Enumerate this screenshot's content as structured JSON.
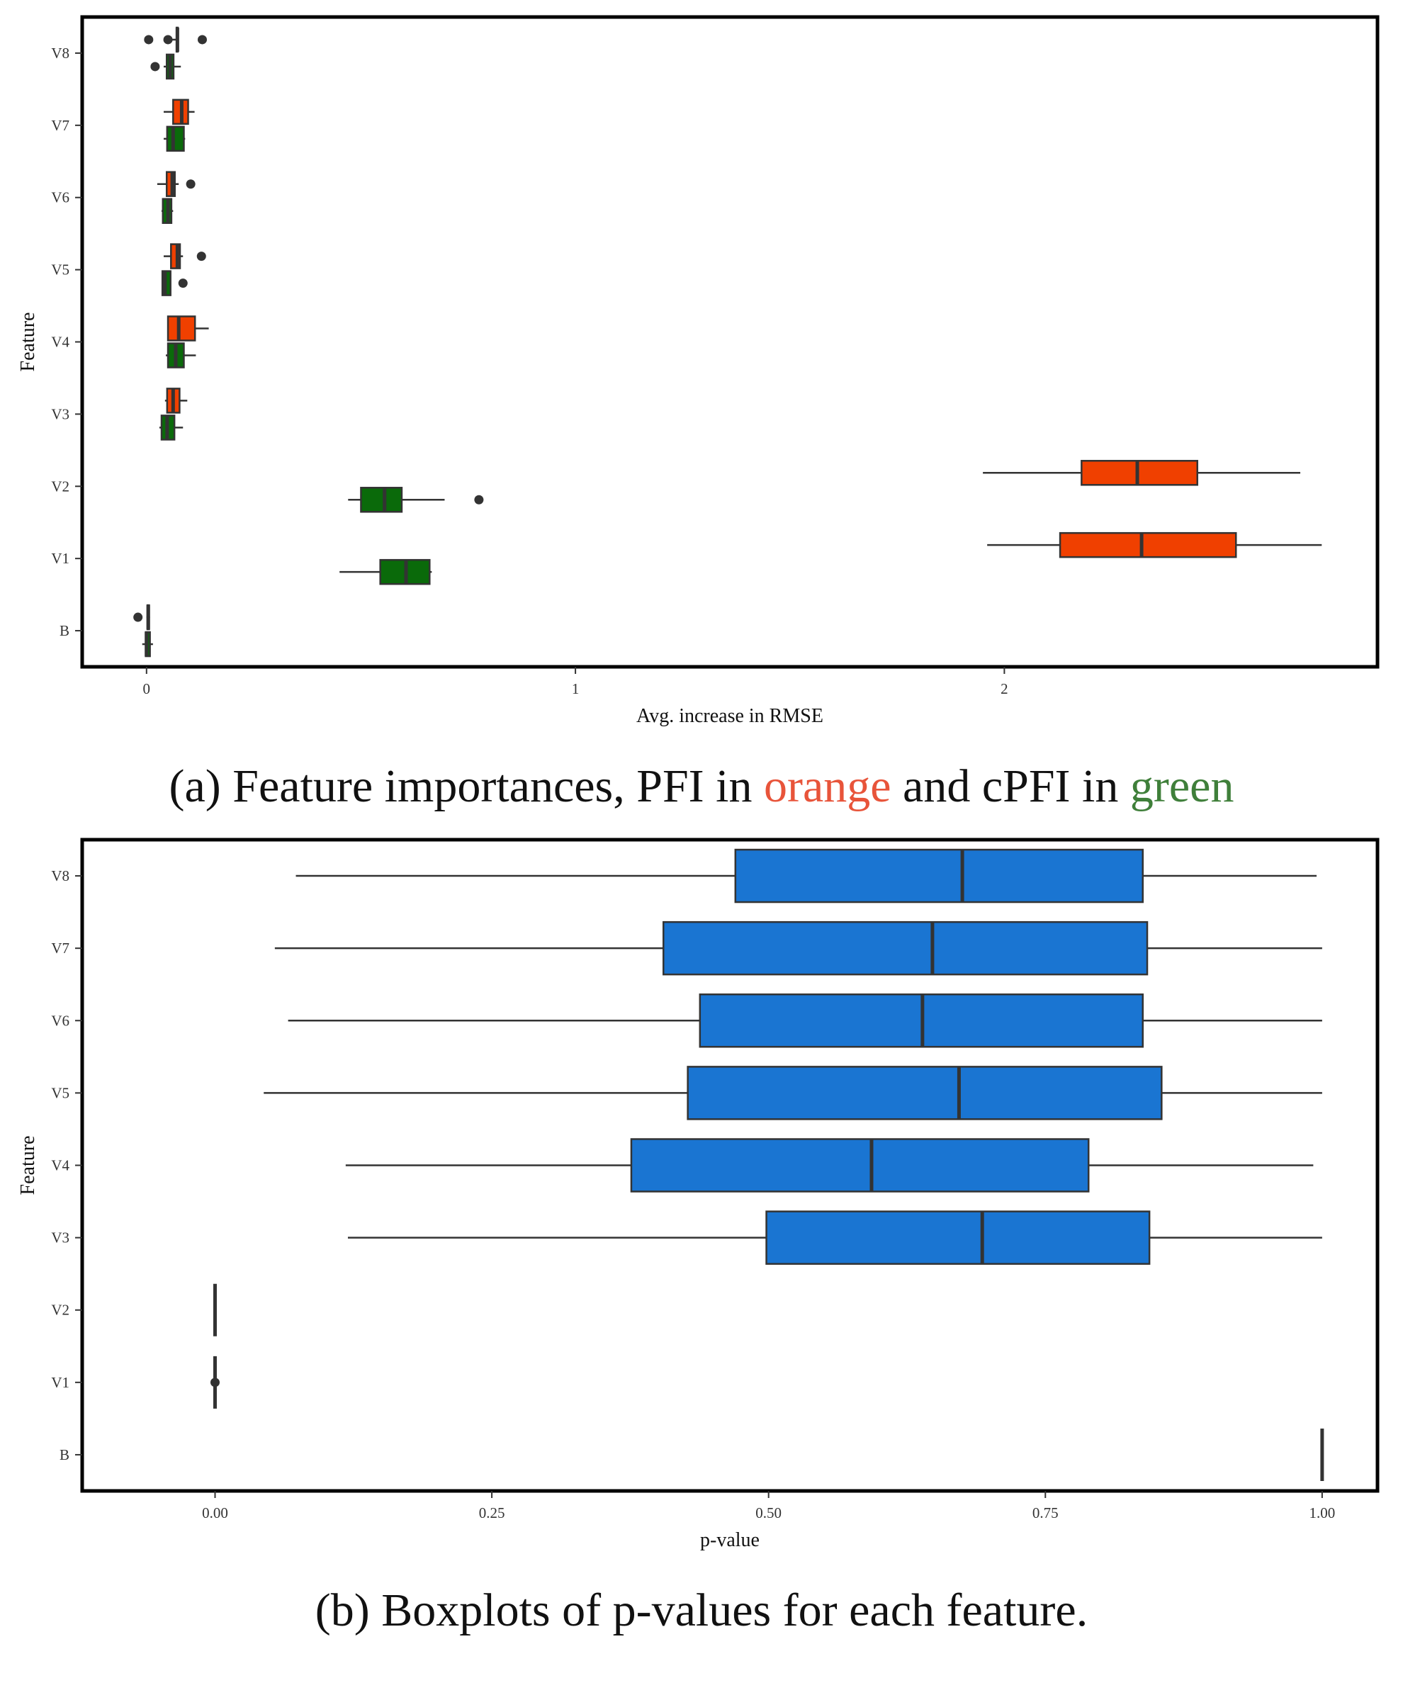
{
  "captions": {
    "a": {
      "prefix": "(a) Feature importances, PFI in ",
      "orange_word": "orange",
      "middle": " and cPFI in ",
      "green_word": "green",
      "orange_color": "#e8543a",
      "green_color": "#3f7f3a"
    },
    "b": {
      "text": "(b) Boxplots of p-values for each feature."
    }
  },
  "chart_data": [
    {
      "type": "boxplot",
      "orientation": "horizontal",
      "title": "",
      "xlabel": "Avg. increase in RMSE",
      "ylabel": "Feature",
      "xlim": [
        -0.15,
        2.87
      ],
      "x_ticks": [
        {
          "value": 0,
          "label": "0"
        },
        {
          "value": 1,
          "label": "1"
        },
        {
          "value": 2,
          "label": "2"
        }
      ],
      "categories": [
        "V8",
        "V7",
        "V6",
        "V5",
        "V4",
        "V3",
        "V2",
        "V1",
        "B"
      ],
      "grid": false,
      "legend": "none (colors explained in caption)",
      "series": [
        {
          "color": "#f04000",
          "boxes": [
            {
              "category": "V8",
              "whisker_low": 0.06,
              "q1": 0.07,
              "median": 0.072,
              "q3": 0.073,
              "whisker_high": 0.075,
              "outliers": [
                0.005,
                0.05,
                0.13
              ]
            },
            {
              "category": "V7",
              "whisker_low": 0.04,
              "q1": 0.062,
              "median": 0.082,
              "q3": 0.097,
              "whisker_high": 0.112,
              "outliers": []
            },
            {
              "category": "V6",
              "whisker_low": 0.025,
              "q1": 0.047,
              "median": 0.06,
              "q3": 0.066,
              "whisker_high": 0.075,
              "outliers": [
                0.103
              ]
            },
            {
              "category": "V5",
              "whisker_low": 0.04,
              "q1": 0.057,
              "median": 0.072,
              "q3": 0.078,
              "whisker_high": 0.085,
              "outliers": [
                0.128
              ]
            },
            {
              "category": "V4",
              "whisker_low": 0.05,
              "q1": 0.05,
              "median": 0.075,
              "q3": 0.113,
              "whisker_high": 0.145,
              "outliers": []
            },
            {
              "category": "V3",
              "whisker_low": 0.043,
              "q1": 0.048,
              "median": 0.062,
              "q3": 0.077,
              "whisker_high": 0.095,
              "outliers": []
            },
            {
              "category": "V2",
              "whisker_low": 1.95,
              "q1": 2.18,
              "median": 2.31,
              "q3": 2.45,
              "whisker_high": 2.69,
              "outliers": []
            },
            {
              "category": "V1",
              "whisker_low": 1.96,
              "q1": 2.13,
              "median": 2.32,
              "q3": 2.54,
              "whisker_high": 2.74,
              "outliers": []
            },
            {
              "category": "B",
              "whisker_low": 0.0,
              "q1": 0.002,
              "median": 0.004,
              "q3": 0.006,
              "whisker_high": 0.008,
              "outliers": [
                -0.02
              ]
            }
          ]
        },
        {
          "color": "#0a6a0a",
          "boxes": [
            {
              "category": "V8",
              "whisker_low": 0.04,
              "q1": 0.047,
              "median": 0.055,
              "q3": 0.063,
              "whisker_high": 0.08,
              "outliers": [
                0.02
              ]
            },
            {
              "category": "V7",
              "whisker_low": 0.04,
              "q1": 0.048,
              "median": 0.062,
              "q3": 0.087,
              "whisker_high": 0.09,
              "outliers": []
            },
            {
              "category": "V6",
              "whisker_low": 0.035,
              "q1": 0.038,
              "median": 0.05,
              "q3": 0.058,
              "whisker_high": 0.062,
              "outliers": []
            },
            {
              "category": "V5",
              "whisker_low": 0.037,
              "q1": 0.037,
              "median": 0.043,
              "q3": 0.056,
              "whisker_high": 0.056,
              "outliers": [
                0.085
              ]
            },
            {
              "category": "V4",
              "whisker_low": 0.045,
              "q1": 0.05,
              "median": 0.068,
              "q3": 0.087,
              "whisker_high": 0.115,
              "outliers": []
            },
            {
              "category": "V3",
              "whisker_low": 0.03,
              "q1": 0.035,
              "median": 0.048,
              "q3": 0.065,
              "whisker_high": 0.085,
              "outliers": []
            },
            {
              "category": "V2",
              "whisker_low": 0.47,
              "q1": 0.5,
              "median": 0.555,
              "q3": 0.595,
              "whisker_high": 0.695,
              "outliers": [
                0.775
              ]
            },
            {
              "category": "V1",
              "whisker_low": 0.45,
              "q1": 0.545,
              "median": 0.605,
              "q3": 0.66,
              "whisker_high": 0.665,
              "outliers": []
            },
            {
              "category": "B",
              "whisker_low": -0.01,
              "q1": -0.002,
              "median": 0.0,
              "q3": 0.008,
              "whisker_high": 0.015,
              "outliers": []
            }
          ]
        }
      ]
    },
    {
      "type": "boxplot",
      "orientation": "horizontal",
      "title": "",
      "xlabel": "p-value",
      "ylabel": "Feature",
      "xlim": [
        -0.12,
        1.05
      ],
      "x_ticks": [
        {
          "value": 0.0,
          "label": "0.00"
        },
        {
          "value": 0.25,
          "label": "0.25"
        },
        {
          "value": 0.5,
          "label": "0.50"
        },
        {
          "value": 0.75,
          "label": "0.75"
        },
        {
          "value": 1.0,
          "label": "1.00"
        }
      ],
      "categories": [
        "V8",
        "V7",
        "V6",
        "V5",
        "V4",
        "V3",
        "V2",
        "V1",
        "B"
      ],
      "grid": false,
      "legend": "none",
      "series": [
        {
          "color": "#1a75d2",
          "boxes": [
            {
              "category": "V8",
              "whisker_low": 0.073,
              "q1": 0.47,
              "median": 0.675,
              "q3": 0.838,
              "whisker_high": 0.995,
              "outliers": []
            },
            {
              "category": "V7",
              "whisker_low": 0.054,
              "q1": 0.405,
              "median": 0.648,
              "q3": 0.842,
              "whisker_high": 1.0,
              "outliers": []
            },
            {
              "category": "V6",
              "whisker_low": 0.066,
              "q1": 0.438,
              "median": 0.639,
              "q3": 0.838,
              "whisker_high": 1.0,
              "outliers": []
            },
            {
              "category": "V5",
              "whisker_low": 0.044,
              "q1": 0.427,
              "median": 0.672,
              "q3": 0.855,
              "whisker_high": 1.0,
              "outliers": []
            },
            {
              "category": "V4",
              "whisker_low": 0.118,
              "q1": 0.376,
              "median": 0.593,
              "q3": 0.789,
              "whisker_high": 0.992,
              "outliers": []
            },
            {
              "category": "V3",
              "whisker_low": 0.12,
              "q1": 0.498,
              "median": 0.693,
              "q3": 0.844,
              "whisker_high": 1.0,
              "outliers": []
            },
            {
              "category": "V2",
              "whisker_low": 0.0,
              "q1": 0.0,
              "median": 0.0,
              "q3": 0.0,
              "whisker_high": 0.0,
              "outliers": []
            },
            {
              "category": "V1",
              "whisker_low": 0.0,
              "q1": 0.0,
              "median": 0.0,
              "q3": 0.0,
              "whisker_high": 0.0,
              "outliers": [
                0.0
              ]
            },
            {
              "category": "B",
              "whisker_low": 1.0,
              "q1": 1.0,
              "median": 1.0,
              "q3": 1.0,
              "whisker_high": 1.0,
              "outliers": []
            }
          ]
        }
      ]
    }
  ]
}
